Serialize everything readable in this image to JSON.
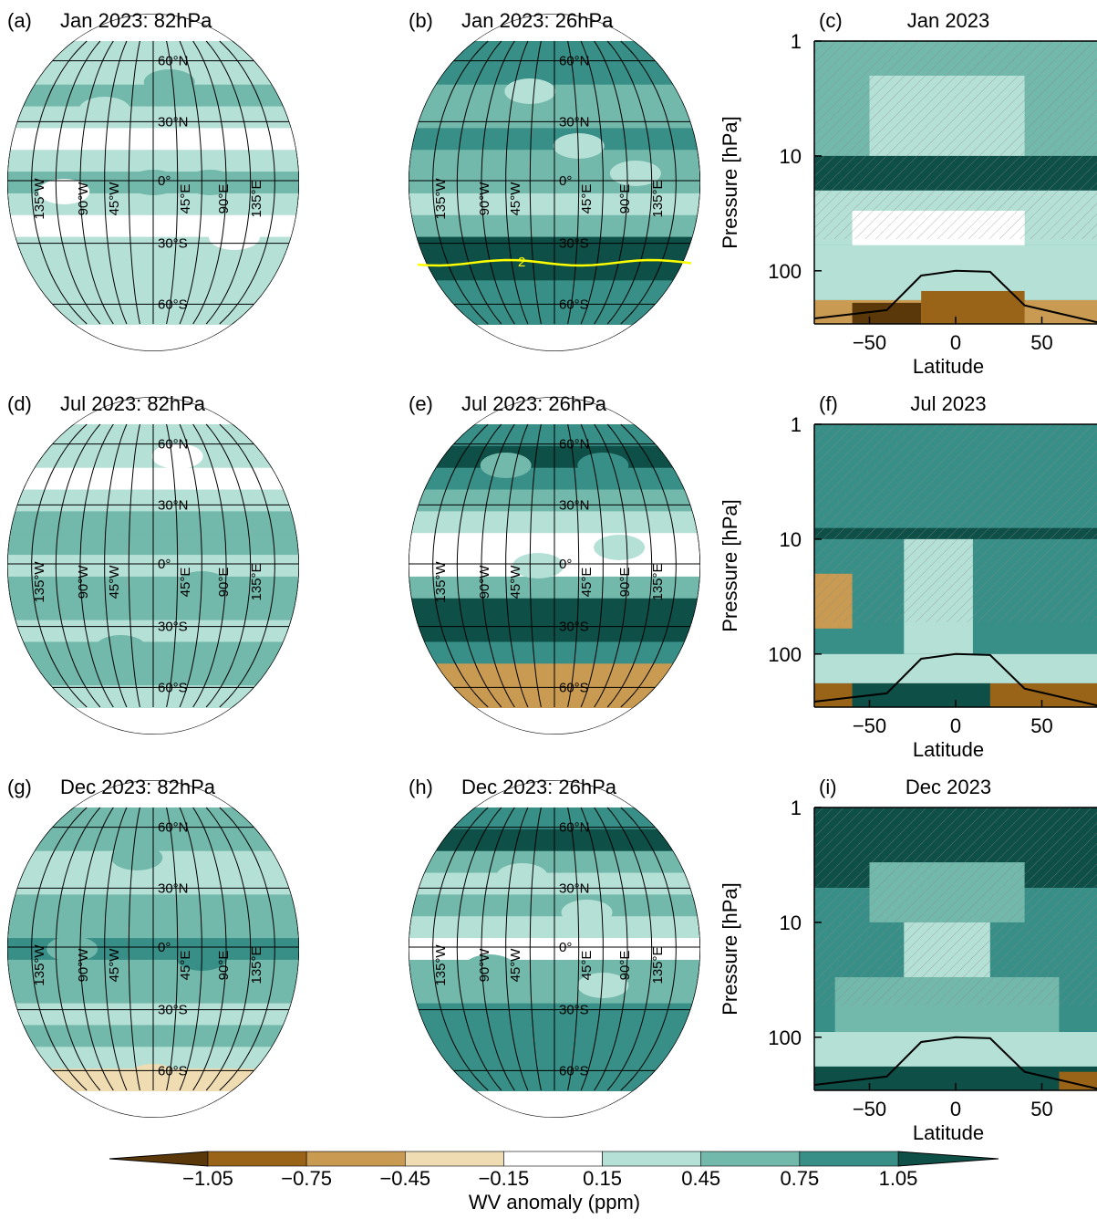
{
  "chart_data": [
    {
      "type": "map",
      "label": "(a)",
      "title": "Jan 2023: 82hPa"
    },
    {
      "type": "map",
      "label": "(b)",
      "title": "Jan 2023: 26hPa",
      "contour_level": 2,
      "contour_color": "#ffff00"
    },
    {
      "type": "contour",
      "label": "(c)",
      "title": "Jan 2023",
      "xlabel": "Latitude",
      "ylabel": "Pressure [hPa]",
      "xlim": [
        -82,
        82
      ],
      "ylim": [
        1,
        290
      ],
      "log_y": true,
      "xticks": [
        {
          "value": -50,
          "label": "−50"
        },
        0,
        50
      ],
      "yticks": [
        1,
        10,
        100
      ]
    },
    {
      "type": "map",
      "label": "(d)",
      "title": "Jul 2023: 82hPa"
    },
    {
      "type": "map",
      "label": "(e)",
      "title": "Jul 2023: 26hPa"
    },
    {
      "type": "contour",
      "label": "(f)",
      "title": "Jul 2023",
      "xlabel": "Latitude",
      "ylabel": "Pressure [hPa]",
      "xlim": [
        -82,
        82
      ],
      "ylim": [
        1,
        290
      ],
      "log_y": true,
      "xticks": [
        {
          "value": -50,
          "label": "−50"
        },
        0,
        50
      ],
      "yticks": [
        1,
        10,
        100
      ]
    },
    {
      "type": "map",
      "label": "(g)",
      "title": "Dec 2023: 82hPa"
    },
    {
      "type": "map",
      "label": "(h)",
      "title": "Dec 2023: 26hPa"
    },
    {
      "type": "contour",
      "label": "(i)",
      "title": "Dec 2023",
      "xlabel": "Latitude",
      "ylabel": "Pressure [hPa]",
      "xlim": [
        -82,
        82
      ],
      "ylim": [
        1,
        290
      ],
      "log_y": true,
      "xticks": [
        {
          "value": -50,
          "label": "−50"
        },
        0,
        50
      ],
      "yticks": [
        1,
        10,
        100
      ]
    },
    {
      "type": "colorbar",
      "label": "WV anomaly (ppm)",
      "ticks": [
        {
          "value": -1.05,
          "label": "−1.05"
        },
        {
          "value": -0.75,
          "label": "−0.75"
        },
        {
          "value": -0.45,
          "label": "−0.45"
        },
        {
          "value": -0.15,
          "label": "−0.15"
        },
        0.15,
        0.45,
        0.75,
        1.05
      ],
      "colors": [
        "#5b3809",
        "#9a6418",
        "#c99b52",
        "#efdcb2",
        "#ffffff",
        "#b5e0d6",
        "#72b8ab",
        "#388f87",
        "#0e4f47"
      ]
    }
  ],
  "graticule": {
    "parallels": [
      "60°N",
      "30°N",
      "0°",
      "30°S",
      "60°S"
    ],
    "meridians": [
      "135°W",
      "90°W",
      "45°W",
      "45°E",
      "90°E",
      "135°E"
    ]
  }
}
